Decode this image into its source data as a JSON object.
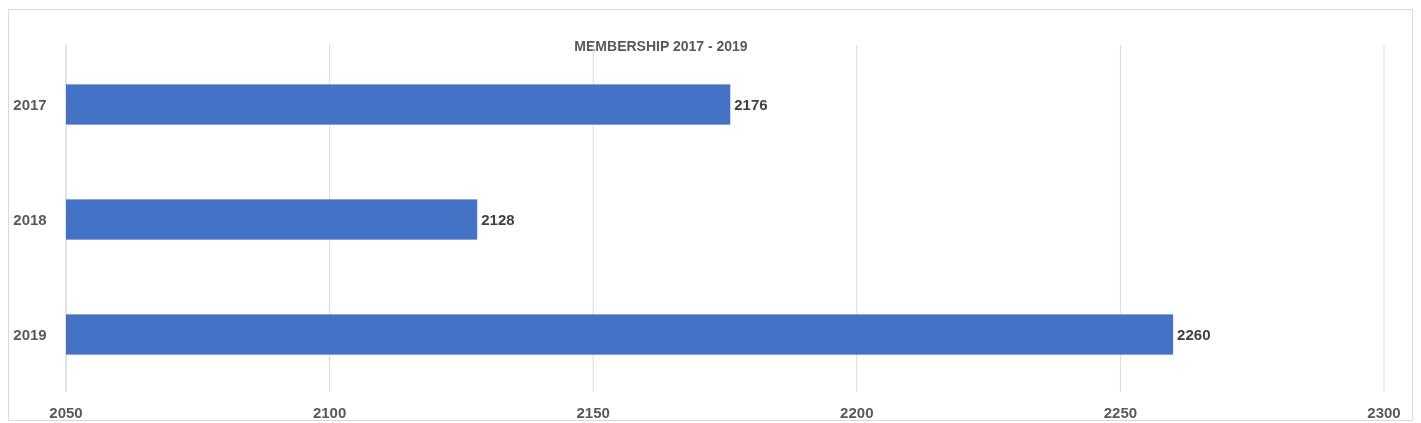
{
  "chart_data": {
    "type": "bar",
    "title": "MEMBERSHIP 2017 - 2019",
    "orientation": "horizontal",
    "categories": [
      "2017",
      "2018",
      "2019"
    ],
    "values": [
      2176,
      2128,
      2260
    ],
    "color": "#4472c4",
    "xlim": [
      2050,
      2300
    ],
    "xticks": [
      2050,
      2100,
      2150,
      2200,
      2250,
      2300
    ],
    "grid": "x",
    "data_labels": true
  }
}
